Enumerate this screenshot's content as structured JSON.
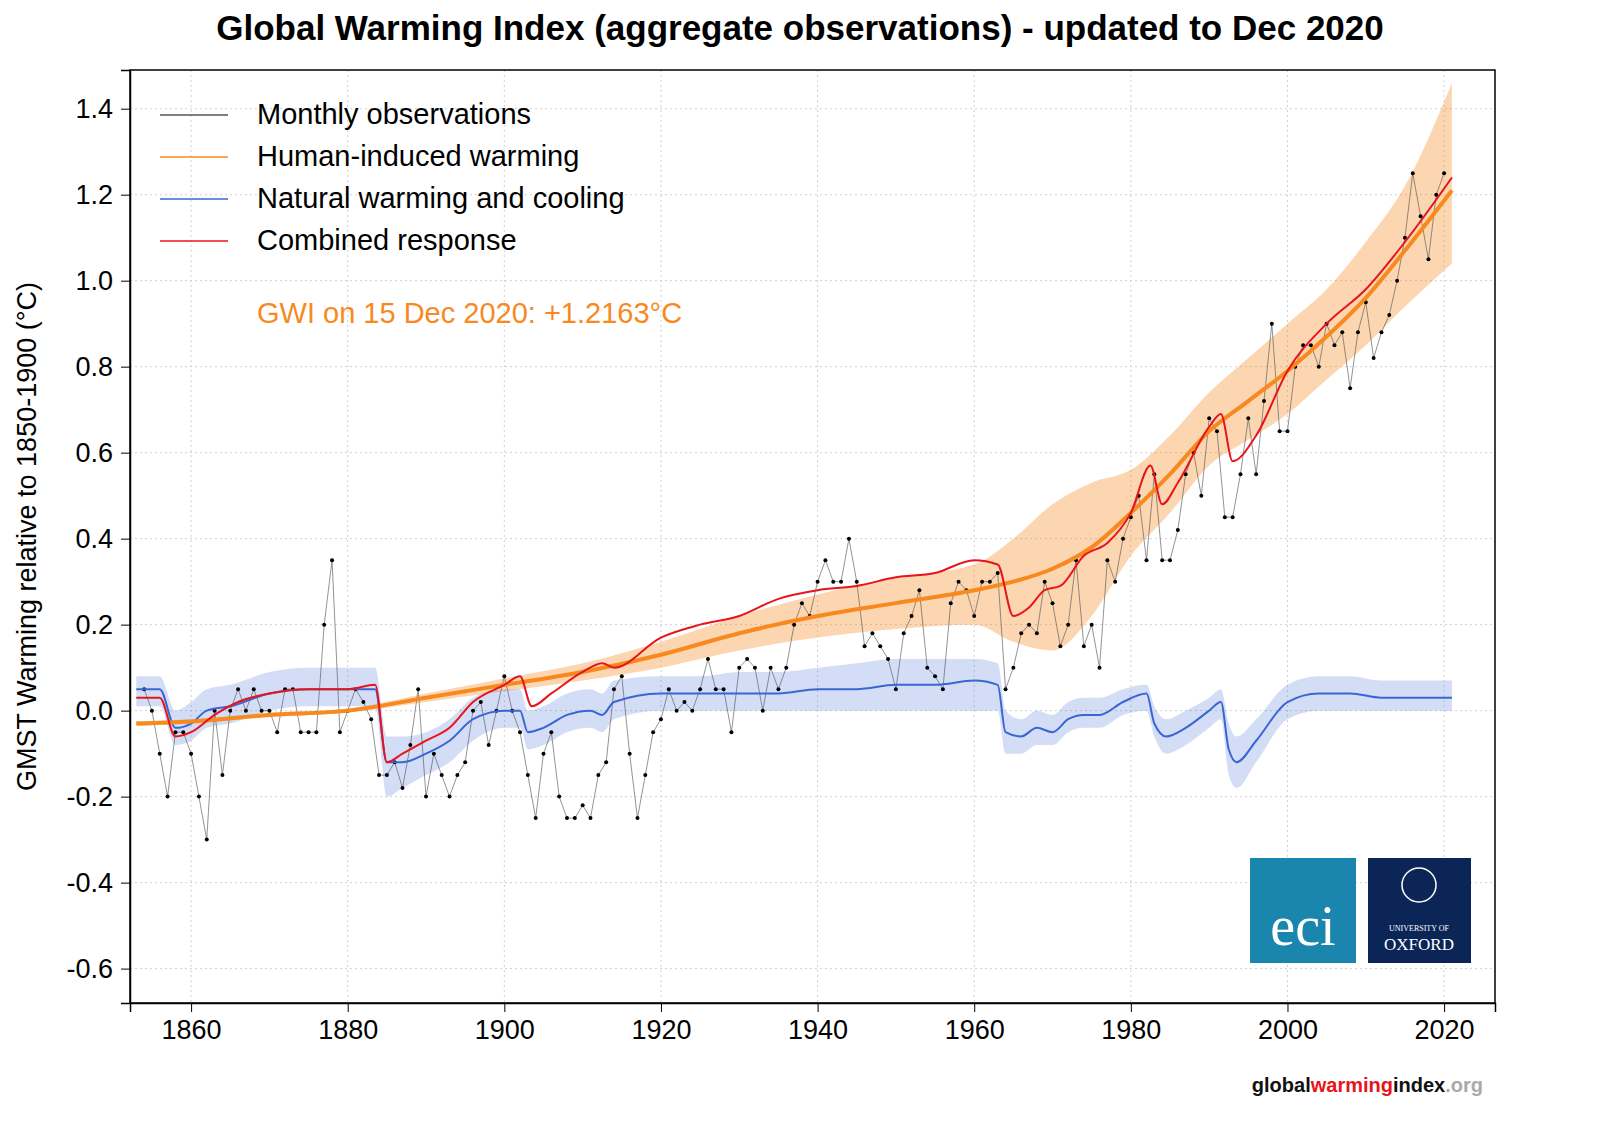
{
  "chart_data": {
    "type": "line",
    "title": "Global Warming Index (aggregate observations) - updated to Dec 2020",
    "y_label": "GMST Warming relative to 1850-1900 (°C)",
    "annotation": "GWI on 15 Dec 2020: +1.2163°C",
    "logos": [
      "eci",
      "UNIVERSITY OF",
      "OXFORD"
    ],
    "footer": [
      {
        "text": "global",
        "color": "#111111"
      },
      {
        "text": "warming",
        "color": "#e8141b"
      },
      {
        "text": "index",
        "color": "#111111"
      },
      {
        "text": ".org",
        "color": "#aaaaaa"
      }
    ],
    "xlim": [
      1852.2,
      2026.5
    ],
    "ylim": [
      -0.68,
      1.49
    ],
    "xticks": [
      1860,
      1880,
      1900,
      1920,
      1940,
      1960,
      1980,
      2000,
      2020
    ],
    "yticks": [
      -0.6,
      -0.4,
      -0.2,
      {
        "value": 0,
        "label": "0.0"
      },
      0.2,
      0.4,
      0.6,
      0.8,
      {
        "value": 1,
        "label": "1.0"
      },
      1.2,
      1.4
    ],
    "grid": true,
    "legend": "top-left",
    "series": [
      {
        "name": "Monthly observations",
        "color": "#555555",
        "marker": "dot",
        "x": [
          1854,
          1855,
          1856,
          1857,
          1858,
          1859,
          1860,
          1861,
          1862,
          1863,
          1864,
          1865,
          1866,
          1867,
          1868,
          1869,
          1870,
          1871,
          1872,
          1873,
          1874,
          1875,
          1876,
          1877,
          1878,
          1879,
          1880,
          1881,
          1882,
          1883,
          1884,
          1885,
          1886,
          1887,
          1888,
          1889,
          1890,
          1891,
          1892,
          1893,
          1894,
          1895,
          1896,
          1897,
          1898,
          1899,
          1900,
          1901,
          1902,
          1903,
          1904,
          1905,
          1906,
          1907,
          1908,
          1909,
          1910,
          1911,
          1912,
          1913,
          1914,
          1915,
          1916,
          1917,
          1918,
          1919,
          1920,
          1921,
          1922,
          1923,
          1924,
          1925,
          1926,
          1927,
          1928,
          1929,
          1930,
          1931,
          1932,
          1933,
          1934,
          1935,
          1936,
          1937,
          1938,
          1939,
          1940,
          1941,
          1942,
          1943,
          1944,
          1945,
          1946,
          1947,
          1948,
          1949,
          1950,
          1951,
          1952,
          1953,
          1954,
          1955,
          1956,
          1957,
          1958,
          1959,
          1960,
          1961,
          1962,
          1963,
          1964,
          1965,
          1966,
          1967,
          1968,
          1969,
          1970,
          1971,
          1972,
          1973,
          1974,
          1975,
          1976,
          1977,
          1978,
          1979,
          1980,
          1981,
          1982,
          1983,
          1984,
          1985,
          1986,
          1987,
          1988,
          1989,
          1990,
          1991,
          1992,
          1993,
          1994,
          1995,
          1996,
          1997,
          1998,
          1999,
          2000,
          2001,
          2002,
          2003,
          2004,
          2005,
          2006,
          2007,
          2008,
          2009,
          2010,
          2011,
          2012,
          2013,
          2014,
          2015,
          2016,
          2017,
          2018,
          2019,
          2020
        ],
        "values": [
          0.05,
          0.0,
          -0.1,
          -0.2,
          -0.05,
          -0.05,
          -0.1,
          -0.2,
          -0.3,
          0.0,
          -0.15,
          0.0,
          0.05,
          0.0,
          0.05,
          0.0,
          0.0,
          -0.05,
          0.05,
          0.05,
          -0.05,
          -0.05,
          -0.05,
          0.2,
          0.35,
          -0.05,
          0.0,
          0.05,
          0.02,
          -0.02,
          -0.15,
          -0.15,
          -0.12,
          -0.18,
          -0.08,
          0.05,
          -0.2,
          -0.1,
          -0.15,
          -0.2,
          -0.15,
          -0.12,
          0.0,
          0.02,
          -0.08,
          0.0,
          0.08,
          0.0,
          -0.05,
          -0.15,
          -0.25,
          -0.1,
          -0.05,
          -0.2,
          -0.25,
          -0.25,
          -0.22,
          -0.25,
          -0.15,
          -0.12,
          0.05,
          0.08,
          -0.1,
          -0.25,
          -0.15,
          -0.05,
          -0.02,
          0.05,
          0.0,
          0.02,
          0.0,
          0.05,
          0.12,
          0.05,
          0.05,
          -0.05,
          0.1,
          0.12,
          0.1,
          0.0,
          0.1,
          0.05,
          0.1,
          0.2,
          0.25,
          0.22,
          0.3,
          0.35,
          0.3,
          0.3,
          0.4,
          0.3,
          0.15,
          0.18,
          0.15,
          0.12,
          0.05,
          0.18,
          0.22,
          0.28,
          0.1,
          0.08,
          0.05,
          0.25,
          0.3,
          0.28,
          0.22,
          0.3,
          0.3,
          0.32,
          0.05,
          0.1,
          0.18,
          0.2,
          0.18,
          0.3,
          0.25,
          0.15,
          0.2,
          0.35,
          0.15,
          0.2,
          0.1,
          0.35,
          0.3,
          0.4,
          0.45,
          0.5,
          0.35,
          0.55,
          0.35,
          0.35,
          0.42,
          0.55,
          0.6,
          0.5,
          0.68,
          0.65,
          0.45,
          0.45,
          0.55,
          0.68,
          0.55,
          0.72,
          0.9,
          0.65,
          0.65,
          0.8,
          0.85,
          0.85,
          0.8,
          0.9,
          0.85,
          0.88,
          0.75,
          0.88,
          0.95,
          0.82,
          0.88,
          0.92,
          1.0,
          1.1,
          1.25,
          1.15,
          1.05,
          1.2,
          1.25
        ]
      },
      {
        "name": "Human-induced warming",
        "color": "#f7891f",
        "x": [
          1853,
          1860,
          1870,
          1880,
          1890,
          1900,
          1910,
          1920,
          1930,
          1940,
          1950,
          1960,
          1965,
          1970,
          1975,
          1980,
          1985,
          1990,
          1995,
          2000,
          2005,
          2010,
          2015,
          2021
        ],
        "values": [
          -0.03,
          -0.025,
          -0.01,
          0.0,
          0.03,
          0.06,
          0.09,
          0.13,
          0.18,
          0.22,
          0.25,
          0.28,
          0.3,
          0.33,
          0.38,
          0.46,
          0.55,
          0.65,
          0.72,
          0.79,
          0.87,
          0.96,
          1.07,
          1.21
        ],
        "lower": [
          -0.035,
          -0.03,
          -0.015,
          -0.005,
          0.02,
          0.045,
          0.07,
          0.1,
          0.14,
          0.17,
          0.19,
          0.2,
          0.16,
          0.14,
          0.22,
          0.36,
          0.46,
          0.57,
          0.63,
          0.69,
          0.77,
          0.85,
          0.94,
          1.04
        ],
        "upper": [
          -0.025,
          -0.02,
          -0.005,
          0.005,
          0.04,
          0.075,
          0.11,
          0.16,
          0.22,
          0.27,
          0.31,
          0.34,
          0.4,
          0.48,
          0.53,
          0.56,
          0.64,
          0.74,
          0.82,
          0.9,
          0.98,
          1.09,
          1.22,
          1.46
        ]
      },
      {
        "name": "Natural warming and cooling",
        "color": "#3a66d4",
        "x": [
          1853,
          1856,
          1858,
          1860,
          1862,
          1865,
          1870,
          1875,
          1880,
          1883.5,
          1885,
          1887,
          1890,
          1893,
          1896,
          1900,
          1902,
          1903,
          1905,
          1908,
          1911,
          1912.5,
          1914,
          1920,
          1925,
          1930,
          1935,
          1940,
          1945,
          1950,
          1955,
          1960,
          1963,
          1964,
          1966,
          1968,
          1970,
          1972,
          1974,
          1976,
          1979,
          1982,
          1983,
          1984.5,
          1987,
          1990,
          1991.5,
          1992.5,
          1993.5,
          1996,
          2000,
          2004,
          2008,
          2012,
          2015,
          2021
        ],
        "values": [
          0.05,
          0.05,
          -0.04,
          -0.03,
          0.0,
          0.01,
          0.04,
          0.05,
          0.05,
          0.05,
          -0.12,
          -0.12,
          -0.1,
          -0.07,
          -0.02,
          0.0,
          0.0,
          -0.05,
          -0.04,
          -0.01,
          0.0,
          -0.01,
          0.02,
          0.04,
          0.04,
          0.04,
          0.04,
          0.05,
          0.05,
          0.06,
          0.06,
          0.07,
          0.06,
          -0.05,
          -0.06,
          -0.04,
          -0.05,
          -0.02,
          -0.01,
          -0.01,
          0.02,
          0.04,
          -0.03,
          -0.06,
          -0.04,
          0.0,
          0.02,
          -0.09,
          -0.12,
          -0.07,
          0.02,
          0.04,
          0.04,
          0.03,
          0.03,
          0.03
        ],
        "lower": [
          0.01,
          0.01,
          -0.08,
          -0.07,
          -0.04,
          -0.03,
          0.0,
          0.01,
          0.01,
          0.01,
          -0.2,
          -0.18,
          -0.15,
          -0.12,
          -0.07,
          -0.04,
          -0.04,
          -0.09,
          -0.08,
          -0.05,
          -0.04,
          -0.05,
          -0.02,
          0.0,
          0.0,
          0.0,
          0.0,
          0.0,
          0.0,
          0.0,
          0.0,
          0.0,
          0.0,
          -0.1,
          -0.1,
          -0.08,
          -0.08,
          -0.05,
          -0.04,
          -0.04,
          -0.01,
          0.0,
          -0.06,
          -0.1,
          -0.08,
          -0.04,
          -0.02,
          -0.15,
          -0.18,
          -0.12,
          -0.02,
          0.0,
          0.0,
          0.0,
          0.0,
          0.0
        ],
        "upper": [
          0.08,
          0.08,
          0.0,
          0.02,
          0.05,
          0.06,
          0.09,
          0.1,
          0.1,
          0.1,
          -0.06,
          -0.06,
          -0.05,
          -0.02,
          0.03,
          0.05,
          0.05,
          0.0,
          0.01,
          0.04,
          0.05,
          0.04,
          0.07,
          0.08,
          0.08,
          0.09,
          0.09,
          0.1,
          0.11,
          0.12,
          0.12,
          0.12,
          0.11,
          0.0,
          -0.02,
          0.0,
          -0.01,
          0.02,
          0.03,
          0.03,
          0.05,
          0.06,
          0.01,
          -0.02,
          0.0,
          0.03,
          0.05,
          -0.03,
          -0.06,
          -0.02,
          0.06,
          0.08,
          0.08,
          0.07,
          0.07,
          0.07
        ]
      },
      {
        "name": "Combined response",
        "color": "#e8141b",
        "x": [
          1853,
          1856,
          1858,
          1860,
          1863,
          1866,
          1870,
          1875,
          1880,
          1883.5,
          1885,
          1887,
          1890,
          1893,
          1896,
          1900,
          1902,
          1903.5,
          1906,
          1910,
          1912.5,
          1914,
          1920,
          1925,
          1930,
          1935,
          1940,
          1945,
          1950,
          1955,
          1960,
          1963,
          1965,
          1967,
          1969,
          1971,
          1974,
          1977,
          1980,
          1982.5,
          1984,
          1986,
          1990,
          1991.5,
          1993,
          1996,
          2000,
          2005,
          2010,
          2015,
          2021
        ],
        "values": [
          0.03,
          0.03,
          -0.06,
          -0.05,
          -0.01,
          0.02,
          0.04,
          0.05,
          0.05,
          0.06,
          -0.12,
          -0.1,
          -0.07,
          -0.04,
          0.02,
          0.06,
          0.08,
          0.01,
          0.04,
          0.09,
          0.11,
          0.1,
          0.17,
          0.2,
          0.22,
          0.26,
          0.28,
          0.29,
          0.31,
          0.32,
          0.35,
          0.34,
          0.22,
          0.24,
          0.28,
          0.29,
          0.36,
          0.39,
          0.46,
          0.57,
          0.48,
          0.53,
          0.66,
          0.69,
          0.58,
          0.64,
          0.79,
          0.9,
          0.98,
          1.09,
          1.24
        ]
      }
    ]
  }
}
